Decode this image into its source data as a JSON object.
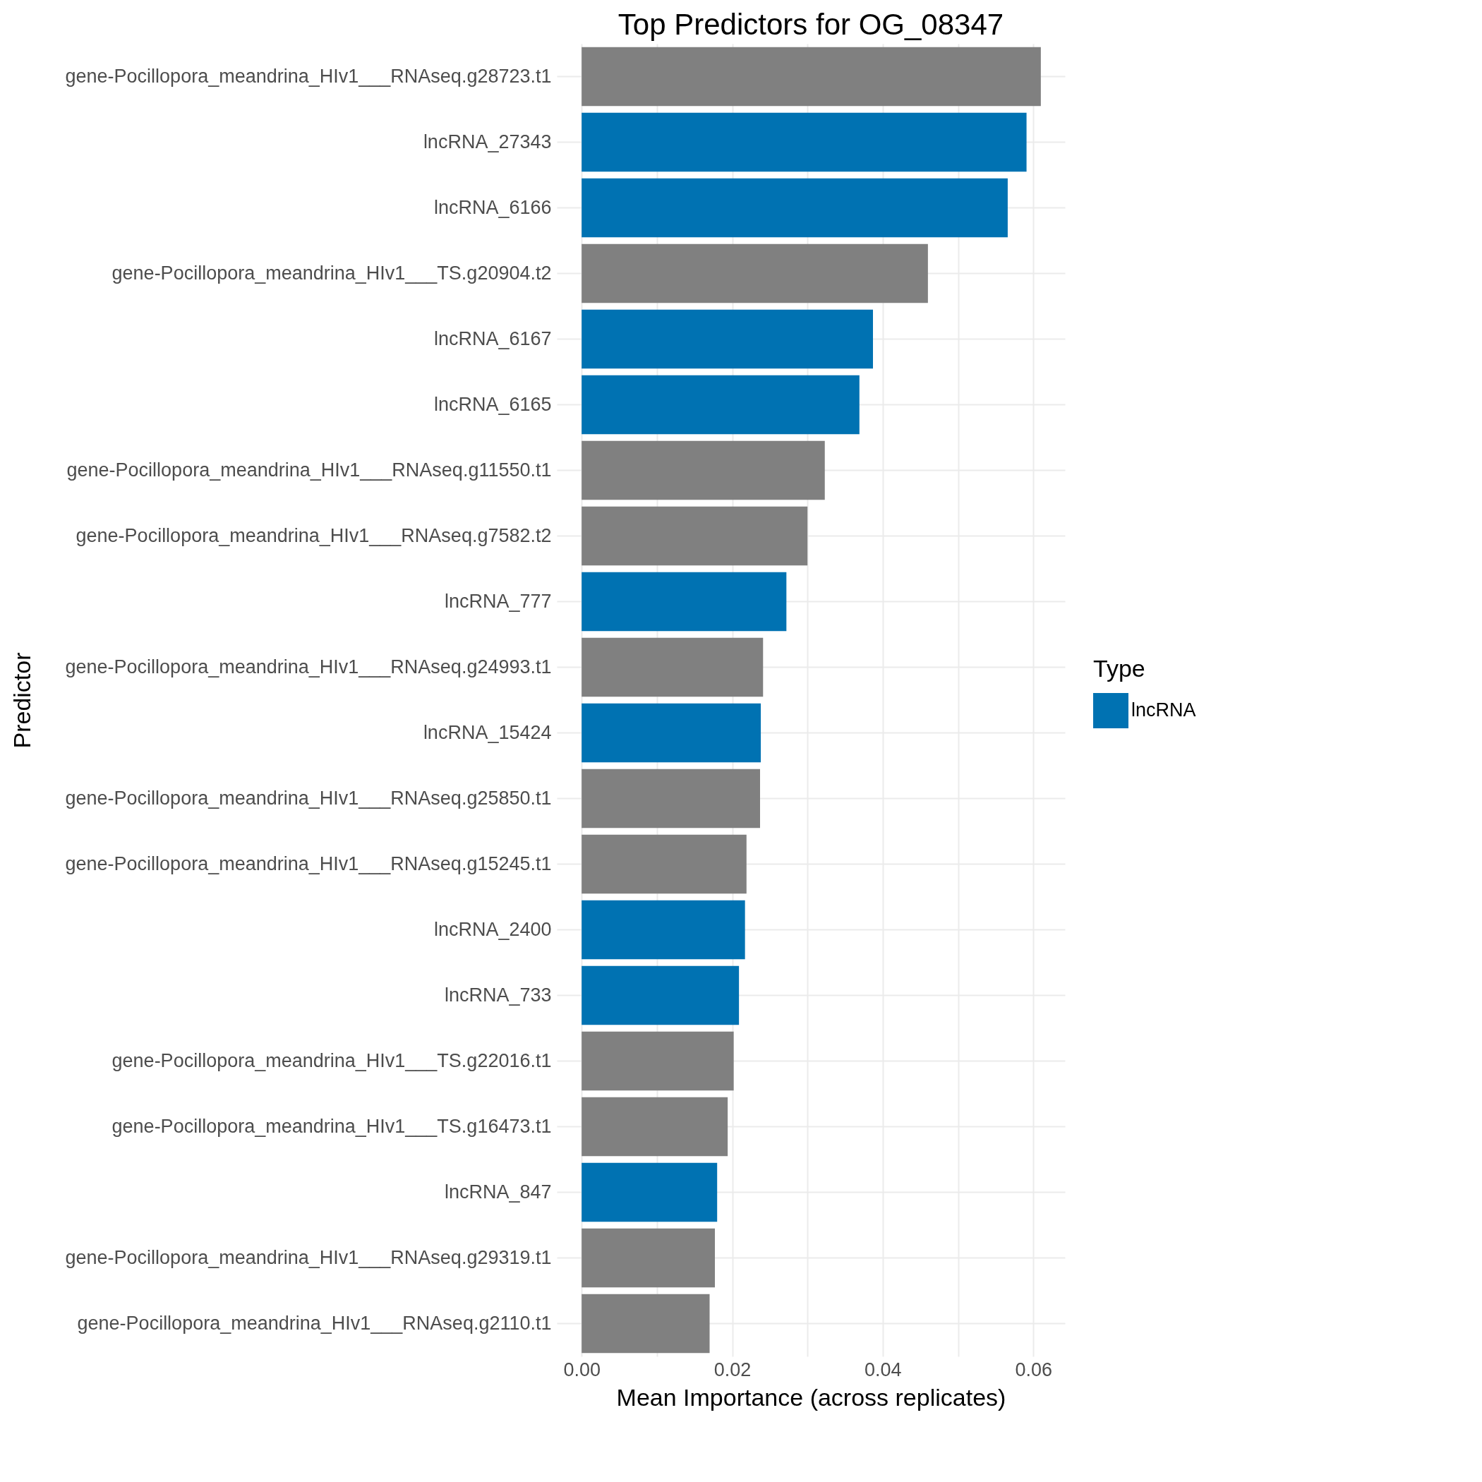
{
  "chart_data": {
    "type": "bar",
    "orientation": "horizontal",
    "title": "Top Predictors for OG_08347",
    "xlabel": "Mean Importance (across replicates)",
    "ylabel": "Predictor",
    "legend_title": "Type",
    "categories": [
      "gene-Pocillopora_meandrina_HIv1___RNAseq.g28723.t1",
      "lncRNA_27343",
      "lncRNA_6166",
      "gene-Pocillopora_meandrina_HIv1___TS.g20904.t2",
      "lncRNA_6167",
      "lncRNA_6165",
      "gene-Pocillopora_meandrina_HIv1___RNAseq.g11550.t1",
      "gene-Pocillopora_meandrina_HIv1___RNAseq.g7582.t2",
      "lncRNA_777",
      "gene-Pocillopora_meandrina_HIv1___RNAseq.g24993.t1",
      "lncRNA_15424",
      "gene-Pocillopora_meandrina_HIv1___RNAseq.g25850.t1",
      "gene-Pocillopora_meandrina_HIv1___RNAseq.g15245.t1",
      "lncRNA_2400",
      "lncRNA_733",
      "gene-Pocillopora_meandrina_HIv1___TS.g22016.t1",
      "gene-Pocillopora_meandrina_HIv1___TS.g16473.t1",
      "lncRNA_847",
      "gene-Pocillopora_meandrina_HIv1___RNAseq.g29319.t1",
      "gene-Pocillopora_meandrina_HIv1___RNAseq.g2110.t1"
    ],
    "series": [
      {
        "name": "lncRNA",
        "color": "#0072b2",
        "values": [
          null,
          0.0591,
          0.0566,
          null,
          0.0387,
          0.0369,
          null,
          null,
          0.0272,
          null,
          0.0238,
          null,
          null,
          0.0217,
          0.0209,
          null,
          null,
          0.018,
          null,
          null
        ]
      },
      {
        "color": "#808080",
        "values": [
          0.061,
          null,
          null,
          0.046,
          null,
          null,
          0.0323,
          0.03,
          null,
          0.0241,
          null,
          0.0237,
          0.0219,
          null,
          null,
          0.0202,
          0.0194,
          null,
          0.0177,
          0.017
        ]
      }
    ],
    "xlim": [
      -0.0033,
      0.0642
    ],
    "xticks": [
      {
        "value": 0,
        "label": "0.00"
      },
      {
        "value": 0.01,
        "label": null
      },
      {
        "value": 0.02,
        "label": "0.02"
      },
      {
        "value": 0.03,
        "label": null
      },
      {
        "value": 0.04,
        "label": "0.04"
      },
      {
        "value": 0.05,
        "label": null
      },
      {
        "value": 0.06,
        "label": "0.06"
      }
    ],
    "grid": true,
    "legend": "right"
  }
}
